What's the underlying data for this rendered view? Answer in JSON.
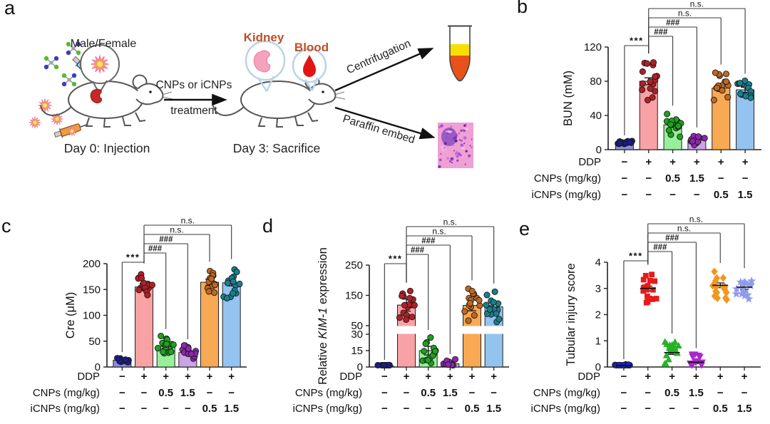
{
  "figure": {
    "panel_letters": [
      "a",
      "b",
      "c",
      "d",
      "e"
    ]
  },
  "panel_a": {
    "male_female": "Male/Female",
    "arrow_line1": "CNPs or iCNPs",
    "arrow_line2": "treatment",
    "day0": "Day 0: Injection",
    "kidney": "Kidney",
    "blood": "Blood",
    "day3": "Day 3: Sacrifice",
    "centrifugation": "Centrifugation",
    "paraffin": "Paraffin embed",
    "organ_label_color": "#bf4f28"
  },
  "dose_table": {
    "rows": [
      {
        "label": "DDP",
        "values": [
          "−",
          "+",
          "+",
          "+",
          "+",
          "+"
        ]
      },
      {
        "label": "CNPs (mg/kg)",
        "values": [
          "−",
          "−",
          "0.5",
          "1.5",
          "−",
          "−"
        ]
      },
      {
        "label": "iCNPs (mg/kg)",
        "values": [
          "−",
          "−",
          "−",
          "−",
          "0.5",
          "1.5"
        ]
      }
    ]
  },
  "chart_data": [
    {
      "id": "b",
      "type": "bar",
      "ylabel": "BUN (mM)",
      "ylim": [
        0,
        120
      ],
      "yticks": [
        0,
        40,
        80,
        120
      ],
      "groups": [
        {
          "mean": 8,
          "sem": 1.2,
          "spread": 3,
          "n": 13,
          "bar_color": "#8a8edb",
          "dot_color": "#1b1b87",
          "marker": "circle"
        },
        {
          "mean": 80,
          "sem": 4,
          "spread": 22,
          "n": 16,
          "bar_color": "#f8a2a6",
          "dot_color": "#b51e26",
          "marker": "circle"
        },
        {
          "mean": 29,
          "sem": 3,
          "spread": 14,
          "n": 15,
          "bar_color": "#98ef9b",
          "dot_color": "#1ea21e",
          "marker": "circle"
        },
        {
          "mean": 11,
          "sem": 2,
          "spread": 8,
          "n": 14,
          "bar_color": "#cba4e4",
          "dot_color": "#8e26af",
          "marker": "circle"
        },
        {
          "mean": 72,
          "sem": 4,
          "spread": 18,
          "n": 15,
          "bar_color": "#f7a953",
          "dot_color": "#c16820",
          "marker": "circle"
        },
        {
          "mean": 70,
          "sem": 3,
          "spread": 11,
          "n": 14,
          "bar_color": "#95c3f0",
          "dot_color": "#17808f",
          "marker": "circle"
        }
      ],
      "significance": [
        {
          "a": 0,
          "b": 1,
          "label": "***"
        },
        {
          "a": 1,
          "b": 2,
          "label": "###"
        },
        {
          "a": 1,
          "b": 3,
          "label": "###"
        },
        {
          "a": 1,
          "b": 4,
          "label": "n.s."
        },
        {
          "a": 1,
          "b": 5,
          "label": "n.s."
        }
      ]
    },
    {
      "id": "c",
      "type": "bar",
      "ylabel": "Cre (μM)",
      "ylim": [
        0,
        200
      ],
      "yticks": [
        0,
        50,
        100,
        150,
        200
      ],
      "groups": [
        {
          "mean": 13,
          "sem": 2,
          "spread": 6,
          "n": 13,
          "bar_color": "#8a8edb",
          "dot_color": "#1b1b87",
          "marker": "circle"
        },
        {
          "mean": 155,
          "sem": 7,
          "spread": 30,
          "n": 16,
          "bar_color": "#f8a2a6",
          "dot_color": "#b51e26",
          "marker": "circle"
        },
        {
          "mean": 40,
          "sem": 4,
          "spread": 20,
          "n": 16,
          "bar_color": "#98ef9b",
          "dot_color": "#1ea21e",
          "marker": "circle"
        },
        {
          "mean": 28,
          "sem": 3,
          "spread": 14,
          "n": 15,
          "bar_color": "#cba4e4",
          "dot_color": "#8e26af",
          "marker": "circle"
        },
        {
          "mean": 164,
          "sem": 6,
          "spread": 25,
          "n": 14,
          "bar_color": "#f7a953",
          "dot_color": "#c16820",
          "marker": "circle"
        },
        {
          "mean": 163,
          "sem": 6,
          "spread": 30,
          "n": 15,
          "bar_color": "#95c3f0",
          "dot_color": "#17808f",
          "marker": "circle"
        }
      ],
      "significance": [
        {
          "a": 0,
          "b": 1,
          "label": "***"
        },
        {
          "a": 1,
          "b": 2,
          "label": "###"
        },
        {
          "a": 1,
          "b": 3,
          "label": "###"
        },
        {
          "a": 1,
          "b": 4,
          "label": "n.s."
        },
        {
          "a": 1,
          "b": 5,
          "label": "n.s."
        }
      ]
    },
    {
      "id": "d",
      "type": "bar",
      "ylabel": "Relative KIM-1 expression",
      "ylabel_rich": [
        {
          "t": "Relative "
        },
        {
          "t": "KIM-1",
          "i": true
        },
        {
          "t": " expression"
        }
      ],
      "axis_break": {
        "lower": [
          0,
          30
        ],
        "lower_ticks": [
          0,
          15,
          30
        ],
        "upper": [
          50,
          250
        ],
        "upper_ticks": [
          50,
          150,
          250
        ]
      },
      "groups": [
        {
          "mean": 1,
          "sem": 0.3,
          "spread": 0.8,
          "n": 12,
          "bar_color": "#8a8edb",
          "dot_color": "#1b1b87",
          "marker": "circle"
        },
        {
          "mean": 118,
          "sem": 20,
          "spread": 48,
          "n": 16,
          "bar_color": "#f8a2a6",
          "dot_color": "#b51e26",
          "marker": "circle"
        },
        {
          "mean": 15,
          "sem": 4,
          "spread": 12,
          "n": 15,
          "bar_color": "#98ef9b",
          "dot_color": "#1ea21e",
          "marker": "circle"
        },
        {
          "mean": 3,
          "sem": 1,
          "spread": 4,
          "n": 12,
          "bar_color": "#cba4e4",
          "dot_color": "#8e26af",
          "marker": "circle"
        },
        {
          "mean": 117,
          "sem": 18,
          "spread": 55,
          "n": 15,
          "bar_color": "#f7a953",
          "dot_color": "#c16820",
          "marker": "circle"
        },
        {
          "mean": 112,
          "sem": 15,
          "spread": 50,
          "n": 16,
          "bar_color": "#95c3f0",
          "dot_color": "#17808f",
          "marker": "circle"
        }
      ],
      "significance": [
        {
          "a": 0,
          "b": 1,
          "label": "***"
        },
        {
          "a": 1,
          "b": 2,
          "label": "###"
        },
        {
          "a": 1,
          "b": 3,
          "label": "###"
        },
        {
          "a": 1,
          "b": 4,
          "label": "n.s."
        },
        {
          "a": 1,
          "b": 5,
          "label": "n.s."
        }
      ]
    },
    {
      "id": "e",
      "type": "scatter",
      "ylabel": "Tubular injury score",
      "ylim": [
        0,
        4
      ],
      "yticks": [
        0,
        1,
        2,
        3,
        4
      ],
      "groups": [
        {
          "mean": 0.05,
          "sem": 0.03,
          "spread": 0.07,
          "n": 14,
          "dot_color": "#1a22d8",
          "marker": "circle"
        },
        {
          "mean": 3.0,
          "sem": 0.09,
          "spread": 0.6,
          "n": 18,
          "dot_color": "#e81a1a",
          "marker": "square"
        },
        {
          "mean": 0.55,
          "sem": 0.07,
          "spread": 0.45,
          "n": 16,
          "dot_color": "#27b227",
          "marker": "triangle-up"
        },
        {
          "mean": 0.18,
          "sem": 0.05,
          "spread": 0.3,
          "n": 14,
          "dot_color": "#a828cc",
          "marker": "triangle-down"
        },
        {
          "mean": 3.12,
          "sem": 0.09,
          "spread": 0.55,
          "n": 16,
          "dot_color": "#f2961e",
          "marker": "diamond"
        },
        {
          "mean": 3.05,
          "sem": 0.08,
          "spread": 0.45,
          "n": 16,
          "dot_color": "#8f9cee",
          "marker": "star"
        }
      ],
      "significance": [
        {
          "a": 0,
          "b": 1,
          "label": "***"
        },
        {
          "a": 1,
          "b": 2,
          "label": "###"
        },
        {
          "a": 1,
          "b": 3,
          "label": "###"
        },
        {
          "a": 1,
          "b": 4,
          "label": "n.s."
        },
        {
          "a": 1,
          "b": 5,
          "label": "n.s."
        }
      ]
    }
  ]
}
